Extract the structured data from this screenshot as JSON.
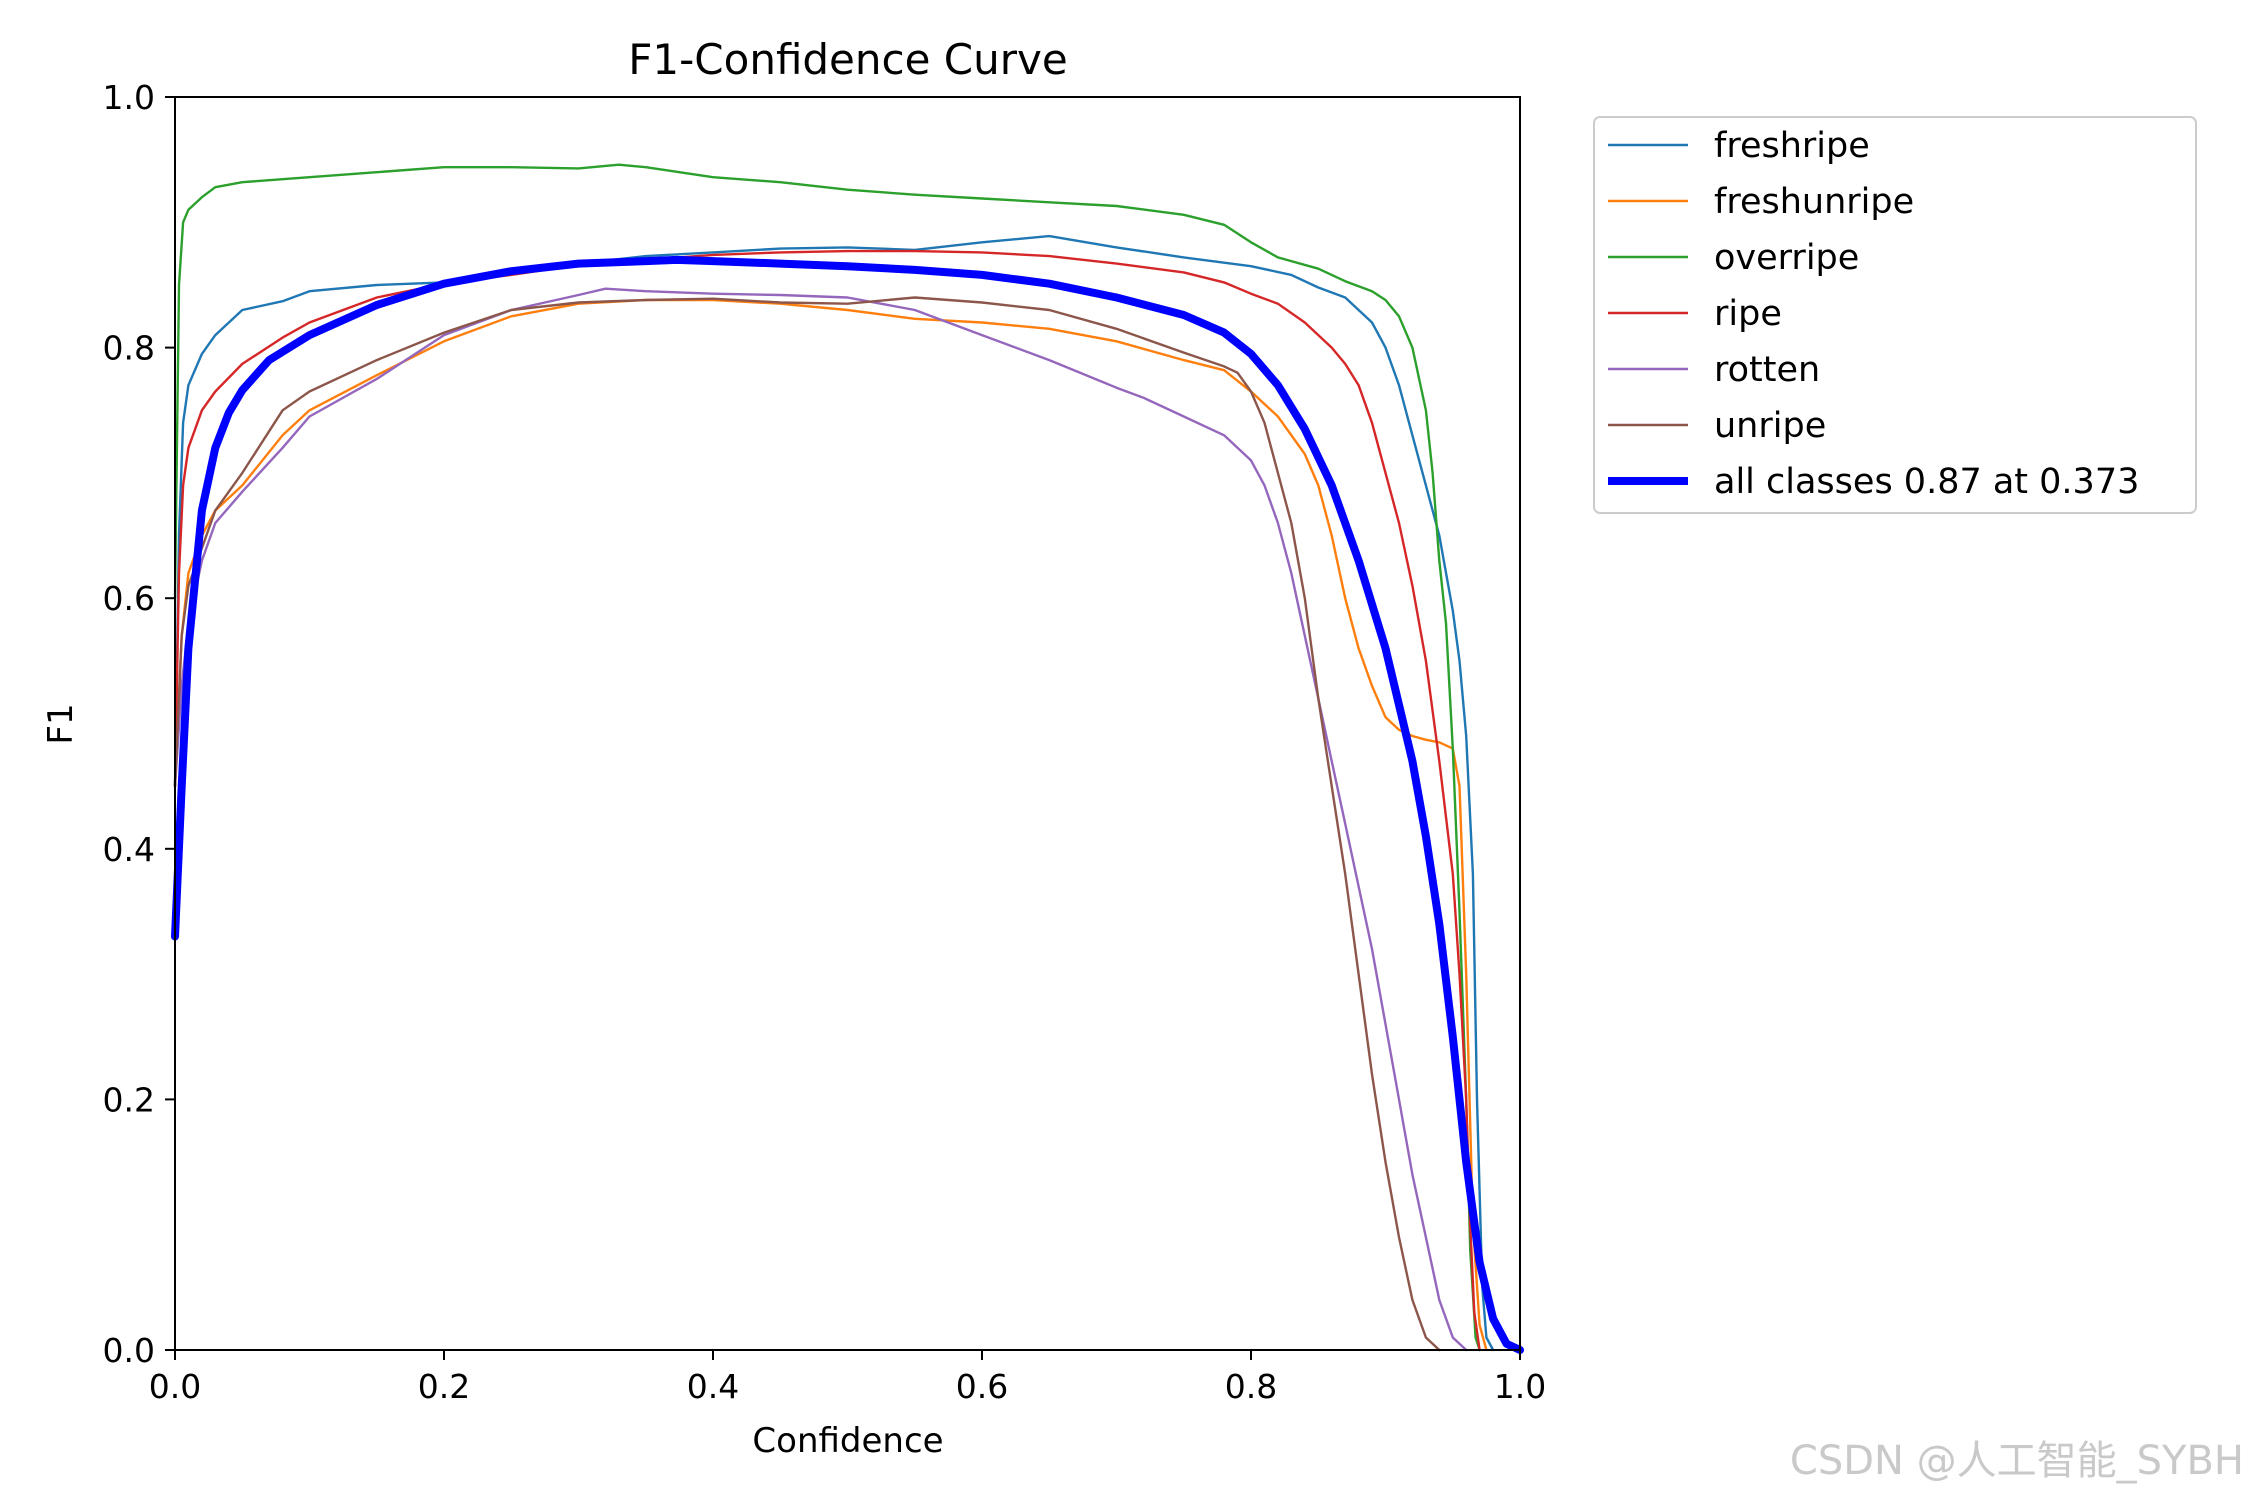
{
  "chart_data": {
    "type": "line",
    "title": "F1-Confidence Curve",
    "xlabel": "Confidence",
    "ylabel": "F1",
    "xlim": [
      0.0,
      1.0
    ],
    "ylim": [
      0.0,
      1.0
    ],
    "xticks": [
      "0.0",
      "0.2",
      "0.4",
      "0.6",
      "0.8",
      "1.0"
    ],
    "yticks": [
      "0.0",
      "0.2",
      "0.4",
      "0.6",
      "0.8",
      "1.0"
    ],
    "grid": false,
    "legend_position": "outside-top-right",
    "series": [
      {
        "name": "freshripe",
        "color": "#1f77b4",
        "points": [
          [
            0.0,
            0.45
          ],
          [
            0.003,
            0.65
          ],
          [
            0.006,
            0.74
          ],
          [
            0.01,
            0.77
          ],
          [
            0.02,
            0.795
          ],
          [
            0.03,
            0.81
          ],
          [
            0.05,
            0.83
          ],
          [
            0.08,
            0.837
          ],
          [
            0.1,
            0.845
          ],
          [
            0.15,
            0.85
          ],
          [
            0.2,
            0.852
          ],
          [
            0.25,
            0.86
          ],
          [
            0.3,
            0.867
          ],
          [
            0.35,
            0.873
          ],
          [
            0.4,
            0.876
          ],
          [
            0.45,
            0.879
          ],
          [
            0.5,
            0.88
          ],
          [
            0.55,
            0.878
          ],
          [
            0.6,
            0.884
          ],
          [
            0.65,
            0.889
          ],
          [
            0.7,
            0.88
          ],
          [
            0.75,
            0.872
          ],
          [
            0.8,
            0.865
          ],
          [
            0.83,
            0.858
          ],
          [
            0.85,
            0.848
          ],
          [
            0.87,
            0.84
          ],
          [
            0.89,
            0.82
          ],
          [
            0.9,
            0.8
          ],
          [
            0.91,
            0.77
          ],
          [
            0.92,
            0.73
          ],
          [
            0.93,
            0.69
          ],
          [
            0.94,
            0.65
          ],
          [
            0.95,
            0.59
          ],
          [
            0.955,
            0.55
          ],
          [
            0.96,
            0.49
          ],
          [
            0.965,
            0.38
          ],
          [
            0.968,
            0.2
          ],
          [
            0.972,
            0.05
          ],
          [
            0.975,
            0.01
          ],
          [
            0.98,
            0.0
          ]
        ]
      },
      {
        "name": "freshunripe",
        "color": "#ff7f0e",
        "points": [
          [
            0.0,
            0.45
          ],
          [
            0.005,
            0.57
          ],
          [
            0.01,
            0.62
          ],
          [
            0.02,
            0.65
          ],
          [
            0.03,
            0.67
          ],
          [
            0.05,
            0.69
          ],
          [
            0.08,
            0.73
          ],
          [
            0.1,
            0.75
          ],
          [
            0.15,
            0.778
          ],
          [
            0.2,
            0.805
          ],
          [
            0.25,
            0.825
          ],
          [
            0.3,
            0.835
          ],
          [
            0.35,
            0.838
          ],
          [
            0.4,
            0.838
          ],
          [
            0.45,
            0.835
          ],
          [
            0.5,
            0.83
          ],
          [
            0.55,
            0.823
          ],
          [
            0.6,
            0.82
          ],
          [
            0.65,
            0.815
          ],
          [
            0.7,
            0.805
          ],
          [
            0.75,
            0.79
          ],
          [
            0.78,
            0.782
          ],
          [
            0.8,
            0.765
          ],
          [
            0.82,
            0.745
          ],
          [
            0.84,
            0.715
          ],
          [
            0.85,
            0.69
          ],
          [
            0.86,
            0.65
          ],
          [
            0.87,
            0.6
          ],
          [
            0.88,
            0.56
          ],
          [
            0.89,
            0.53
          ],
          [
            0.9,
            0.505
          ],
          [
            0.91,
            0.495
          ],
          [
            0.92,
            0.49
          ],
          [
            0.93,
            0.487
          ],
          [
            0.94,
            0.485
          ],
          [
            0.95,
            0.48
          ],
          [
            0.955,
            0.45
          ],
          [
            0.96,
            0.3
          ],
          [
            0.965,
            0.1
          ],
          [
            0.97,
            0.02
          ],
          [
            0.975,
            0.0
          ]
        ]
      },
      {
        "name": "overripe",
        "color": "#2ca02c",
        "points": [
          [
            0.0,
            0.6
          ],
          [
            0.003,
            0.85
          ],
          [
            0.006,
            0.9
          ],
          [
            0.01,
            0.91
          ],
          [
            0.02,
            0.92
          ],
          [
            0.03,
            0.928
          ],
          [
            0.05,
            0.932
          ],
          [
            0.1,
            0.936
          ],
          [
            0.15,
            0.94
          ],
          [
            0.2,
            0.944
          ],
          [
            0.25,
            0.944
          ],
          [
            0.3,
            0.943
          ],
          [
            0.33,
            0.946
          ],
          [
            0.35,
            0.944
          ],
          [
            0.4,
            0.936
          ],
          [
            0.45,
            0.932
          ],
          [
            0.5,
            0.926
          ],
          [
            0.55,
            0.922
          ],
          [
            0.6,
            0.919
          ],
          [
            0.65,
            0.916
          ],
          [
            0.7,
            0.913
          ],
          [
            0.75,
            0.906
          ],
          [
            0.78,
            0.898
          ],
          [
            0.8,
            0.884
          ],
          [
            0.82,
            0.872
          ],
          [
            0.85,
            0.863
          ],
          [
            0.87,
            0.853
          ],
          [
            0.89,
            0.845
          ],
          [
            0.9,
            0.838
          ],
          [
            0.91,
            0.825
          ],
          [
            0.92,
            0.8
          ],
          [
            0.93,
            0.75
          ],
          [
            0.935,
            0.7
          ],
          [
            0.94,
            0.63
          ],
          [
            0.945,
            0.58
          ],
          [
            0.95,
            0.48
          ],
          [
            0.955,
            0.35
          ],
          [
            0.96,
            0.2
          ],
          [
            0.963,
            0.08
          ],
          [
            0.967,
            0.01
          ],
          [
            0.97,
            0.0
          ]
        ]
      },
      {
        "name": "ripe",
        "color": "#d62728",
        "points": [
          [
            0.0,
            0.45
          ],
          [
            0.003,
            0.62
          ],
          [
            0.006,
            0.69
          ],
          [
            0.01,
            0.72
          ],
          [
            0.02,
            0.75
          ],
          [
            0.03,
            0.765
          ],
          [
            0.05,
            0.787
          ],
          [
            0.08,
            0.808
          ],
          [
            0.1,
            0.82
          ],
          [
            0.15,
            0.84
          ],
          [
            0.2,
            0.851
          ],
          [
            0.25,
            0.858
          ],
          [
            0.3,
            0.866
          ],
          [
            0.35,
            0.87
          ],
          [
            0.4,
            0.874
          ],
          [
            0.45,
            0.876
          ],
          [
            0.5,
            0.877
          ],
          [
            0.55,
            0.877
          ],
          [
            0.6,
            0.876
          ],
          [
            0.65,
            0.873
          ],
          [
            0.7,
            0.867
          ],
          [
            0.75,
            0.86
          ],
          [
            0.78,
            0.852
          ],
          [
            0.8,
            0.843
          ],
          [
            0.82,
            0.835
          ],
          [
            0.84,
            0.82
          ],
          [
            0.86,
            0.8
          ],
          [
            0.87,
            0.787
          ],
          [
            0.88,
            0.77
          ],
          [
            0.89,
            0.74
          ],
          [
            0.9,
            0.7
          ],
          [
            0.91,
            0.66
          ],
          [
            0.92,
            0.61
          ],
          [
            0.93,
            0.55
          ],
          [
            0.94,
            0.47
          ],
          [
            0.95,
            0.38
          ],
          [
            0.955,
            0.3
          ],
          [
            0.96,
            0.2
          ],
          [
            0.963,
            0.1
          ],
          [
            0.966,
            0.03
          ],
          [
            0.97,
            0.0
          ]
        ]
      },
      {
        "name": "rotten",
        "color": "#9467bd",
        "points": [
          [
            0.0,
            0.45
          ],
          [
            0.005,
            0.53
          ],
          [
            0.01,
            0.58
          ],
          [
            0.02,
            0.63
          ],
          [
            0.03,
            0.66
          ],
          [
            0.05,
            0.685
          ],
          [
            0.08,
            0.72
          ],
          [
            0.1,
            0.745
          ],
          [
            0.15,
            0.775
          ],
          [
            0.2,
            0.81
          ],
          [
            0.25,
            0.83
          ],
          [
            0.3,
            0.842
          ],
          [
            0.32,
            0.847
          ],
          [
            0.35,
            0.845
          ],
          [
            0.4,
            0.843
          ],
          [
            0.45,
            0.842
          ],
          [
            0.5,
            0.84
          ],
          [
            0.55,
            0.83
          ],
          [
            0.6,
            0.81
          ],
          [
            0.65,
            0.79
          ],
          [
            0.7,
            0.768
          ],
          [
            0.72,
            0.76
          ],
          [
            0.75,
            0.745
          ],
          [
            0.78,
            0.73
          ],
          [
            0.8,
            0.71
          ],
          [
            0.81,
            0.69
          ],
          [
            0.82,
            0.66
          ],
          [
            0.83,
            0.62
          ],
          [
            0.84,
            0.57
          ],
          [
            0.85,
            0.52
          ],
          [
            0.86,
            0.47
          ],
          [
            0.87,
            0.42
          ],
          [
            0.88,
            0.37
          ],
          [
            0.89,
            0.32
          ],
          [
            0.9,
            0.26
          ],
          [
            0.91,
            0.2
          ],
          [
            0.92,
            0.14
          ],
          [
            0.93,
            0.09
          ],
          [
            0.94,
            0.04
          ],
          [
            0.95,
            0.01
          ],
          [
            0.96,
            0.0
          ]
        ]
      },
      {
        "name": "unripe",
        "color": "#8c564b",
        "points": [
          [
            0.0,
            0.45
          ],
          [
            0.005,
            0.57
          ],
          [
            0.01,
            0.61
          ],
          [
            0.02,
            0.64
          ],
          [
            0.03,
            0.67
          ],
          [
            0.05,
            0.7
          ],
          [
            0.08,
            0.75
          ],
          [
            0.1,
            0.765
          ],
          [
            0.15,
            0.79
          ],
          [
            0.2,
            0.812
          ],
          [
            0.25,
            0.83
          ],
          [
            0.3,
            0.836
          ],
          [
            0.35,
            0.838
          ],
          [
            0.4,
            0.839
          ],
          [
            0.45,
            0.836
          ],
          [
            0.5,
            0.835
          ],
          [
            0.55,
            0.84
          ],
          [
            0.6,
            0.836
          ],
          [
            0.65,
            0.83
          ],
          [
            0.7,
            0.815
          ],
          [
            0.75,
            0.796
          ],
          [
            0.78,
            0.785
          ],
          [
            0.79,
            0.78
          ],
          [
            0.8,
            0.765
          ],
          [
            0.81,
            0.74
          ],
          [
            0.82,
            0.7
          ],
          [
            0.83,
            0.66
          ],
          [
            0.84,
            0.6
          ],
          [
            0.85,
            0.52
          ],
          [
            0.86,
            0.45
          ],
          [
            0.87,
            0.38
          ],
          [
            0.88,
            0.3
          ],
          [
            0.89,
            0.22
          ],
          [
            0.9,
            0.15
          ],
          [
            0.91,
            0.09
          ],
          [
            0.92,
            0.04
          ],
          [
            0.93,
            0.01
          ],
          [
            0.94,
            0.0
          ]
        ]
      },
      {
        "name": "all classes 0.87 at 0.373",
        "color": "#0000ff",
        "bold": true,
        "points": [
          [
            0.0,
            0.33
          ],
          [
            0.005,
            0.45
          ],
          [
            0.01,
            0.56
          ],
          [
            0.02,
            0.67
          ],
          [
            0.03,
            0.72
          ],
          [
            0.04,
            0.748
          ],
          [
            0.05,
            0.766
          ],
          [
            0.07,
            0.79
          ],
          [
            0.1,
            0.81
          ],
          [
            0.15,
            0.834
          ],
          [
            0.2,
            0.851
          ],
          [
            0.25,
            0.861
          ],
          [
            0.3,
            0.867
          ],
          [
            0.35,
            0.869
          ],
          [
            0.373,
            0.87
          ],
          [
            0.4,
            0.869
          ],
          [
            0.45,
            0.867
          ],
          [
            0.5,
            0.865
          ],
          [
            0.55,
            0.862
          ],
          [
            0.6,
            0.858
          ],
          [
            0.65,
            0.851
          ],
          [
            0.7,
            0.84
          ],
          [
            0.75,
            0.826
          ],
          [
            0.78,
            0.812
          ],
          [
            0.8,
            0.795
          ],
          [
            0.82,
            0.77
          ],
          [
            0.84,
            0.735
          ],
          [
            0.86,
            0.69
          ],
          [
            0.88,
            0.63
          ],
          [
            0.9,
            0.56
          ],
          [
            0.92,
            0.47
          ],
          [
            0.93,
            0.41
          ],
          [
            0.94,
            0.34
          ],
          [
            0.95,
            0.25
          ],
          [
            0.96,
            0.15
          ],
          [
            0.97,
            0.07
          ],
          [
            0.98,
            0.025
          ],
          [
            0.99,
            0.005
          ],
          [
            1.0,
            0.0
          ]
        ]
      }
    ]
  },
  "watermark": "CSDN @人工智能_SYBH"
}
